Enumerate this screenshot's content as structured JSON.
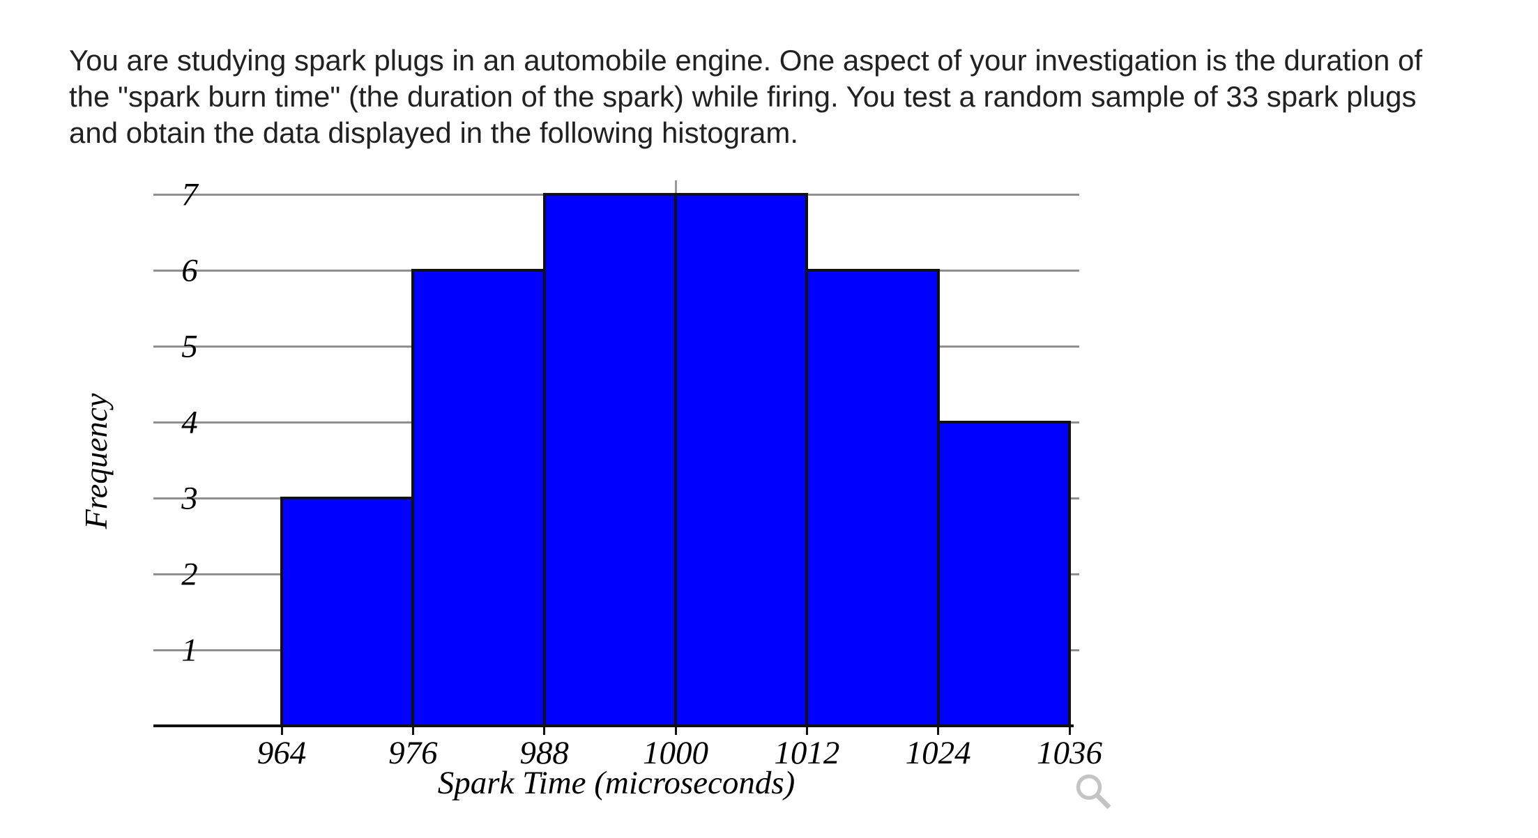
{
  "page": {
    "background": "#ffffff",
    "text_color": "#212121",
    "paragraph_lines": [
      "You are studying spark plugs in an automobile engine. One aspect of your investigation is the duration of",
      "the \"spark burn time\" (the duration of the spark) while firing. You test a random sample of 33 spark plugs",
      "and obtain the data displayed in the following histogram."
    ]
  },
  "chart_data": {
    "type": "bar",
    "subtype": "histogram",
    "title": "",
    "xlabel": "Spark Time (microseconds)",
    "ylabel": "Frequency",
    "bin_edges": [
      964,
      976,
      988,
      1000,
      1012,
      1024,
      1036
    ],
    "frequencies": [
      3,
      6,
      7,
      7,
      6,
      4
    ],
    "x_tick_labels": [
      "964",
      "976",
      "988",
      "1000",
      "1012",
      "1024",
      "1036"
    ],
    "y_ticks": [
      1,
      2,
      3,
      4,
      5,
      6,
      7
    ],
    "ylim": [
      0,
      7
    ],
    "total_count": 33,
    "grid": "horizontal",
    "legend": "none",
    "bar_fill": "#0000ff",
    "bar_border": "#111111",
    "gridline_color": "#8f8f8f",
    "axis_color": "#111111",
    "top_center_tick_color": "#999999"
  },
  "icons": {
    "magnifier": {
      "label": "zoom-magnifier",
      "color": "#c4c4c4"
    }
  }
}
